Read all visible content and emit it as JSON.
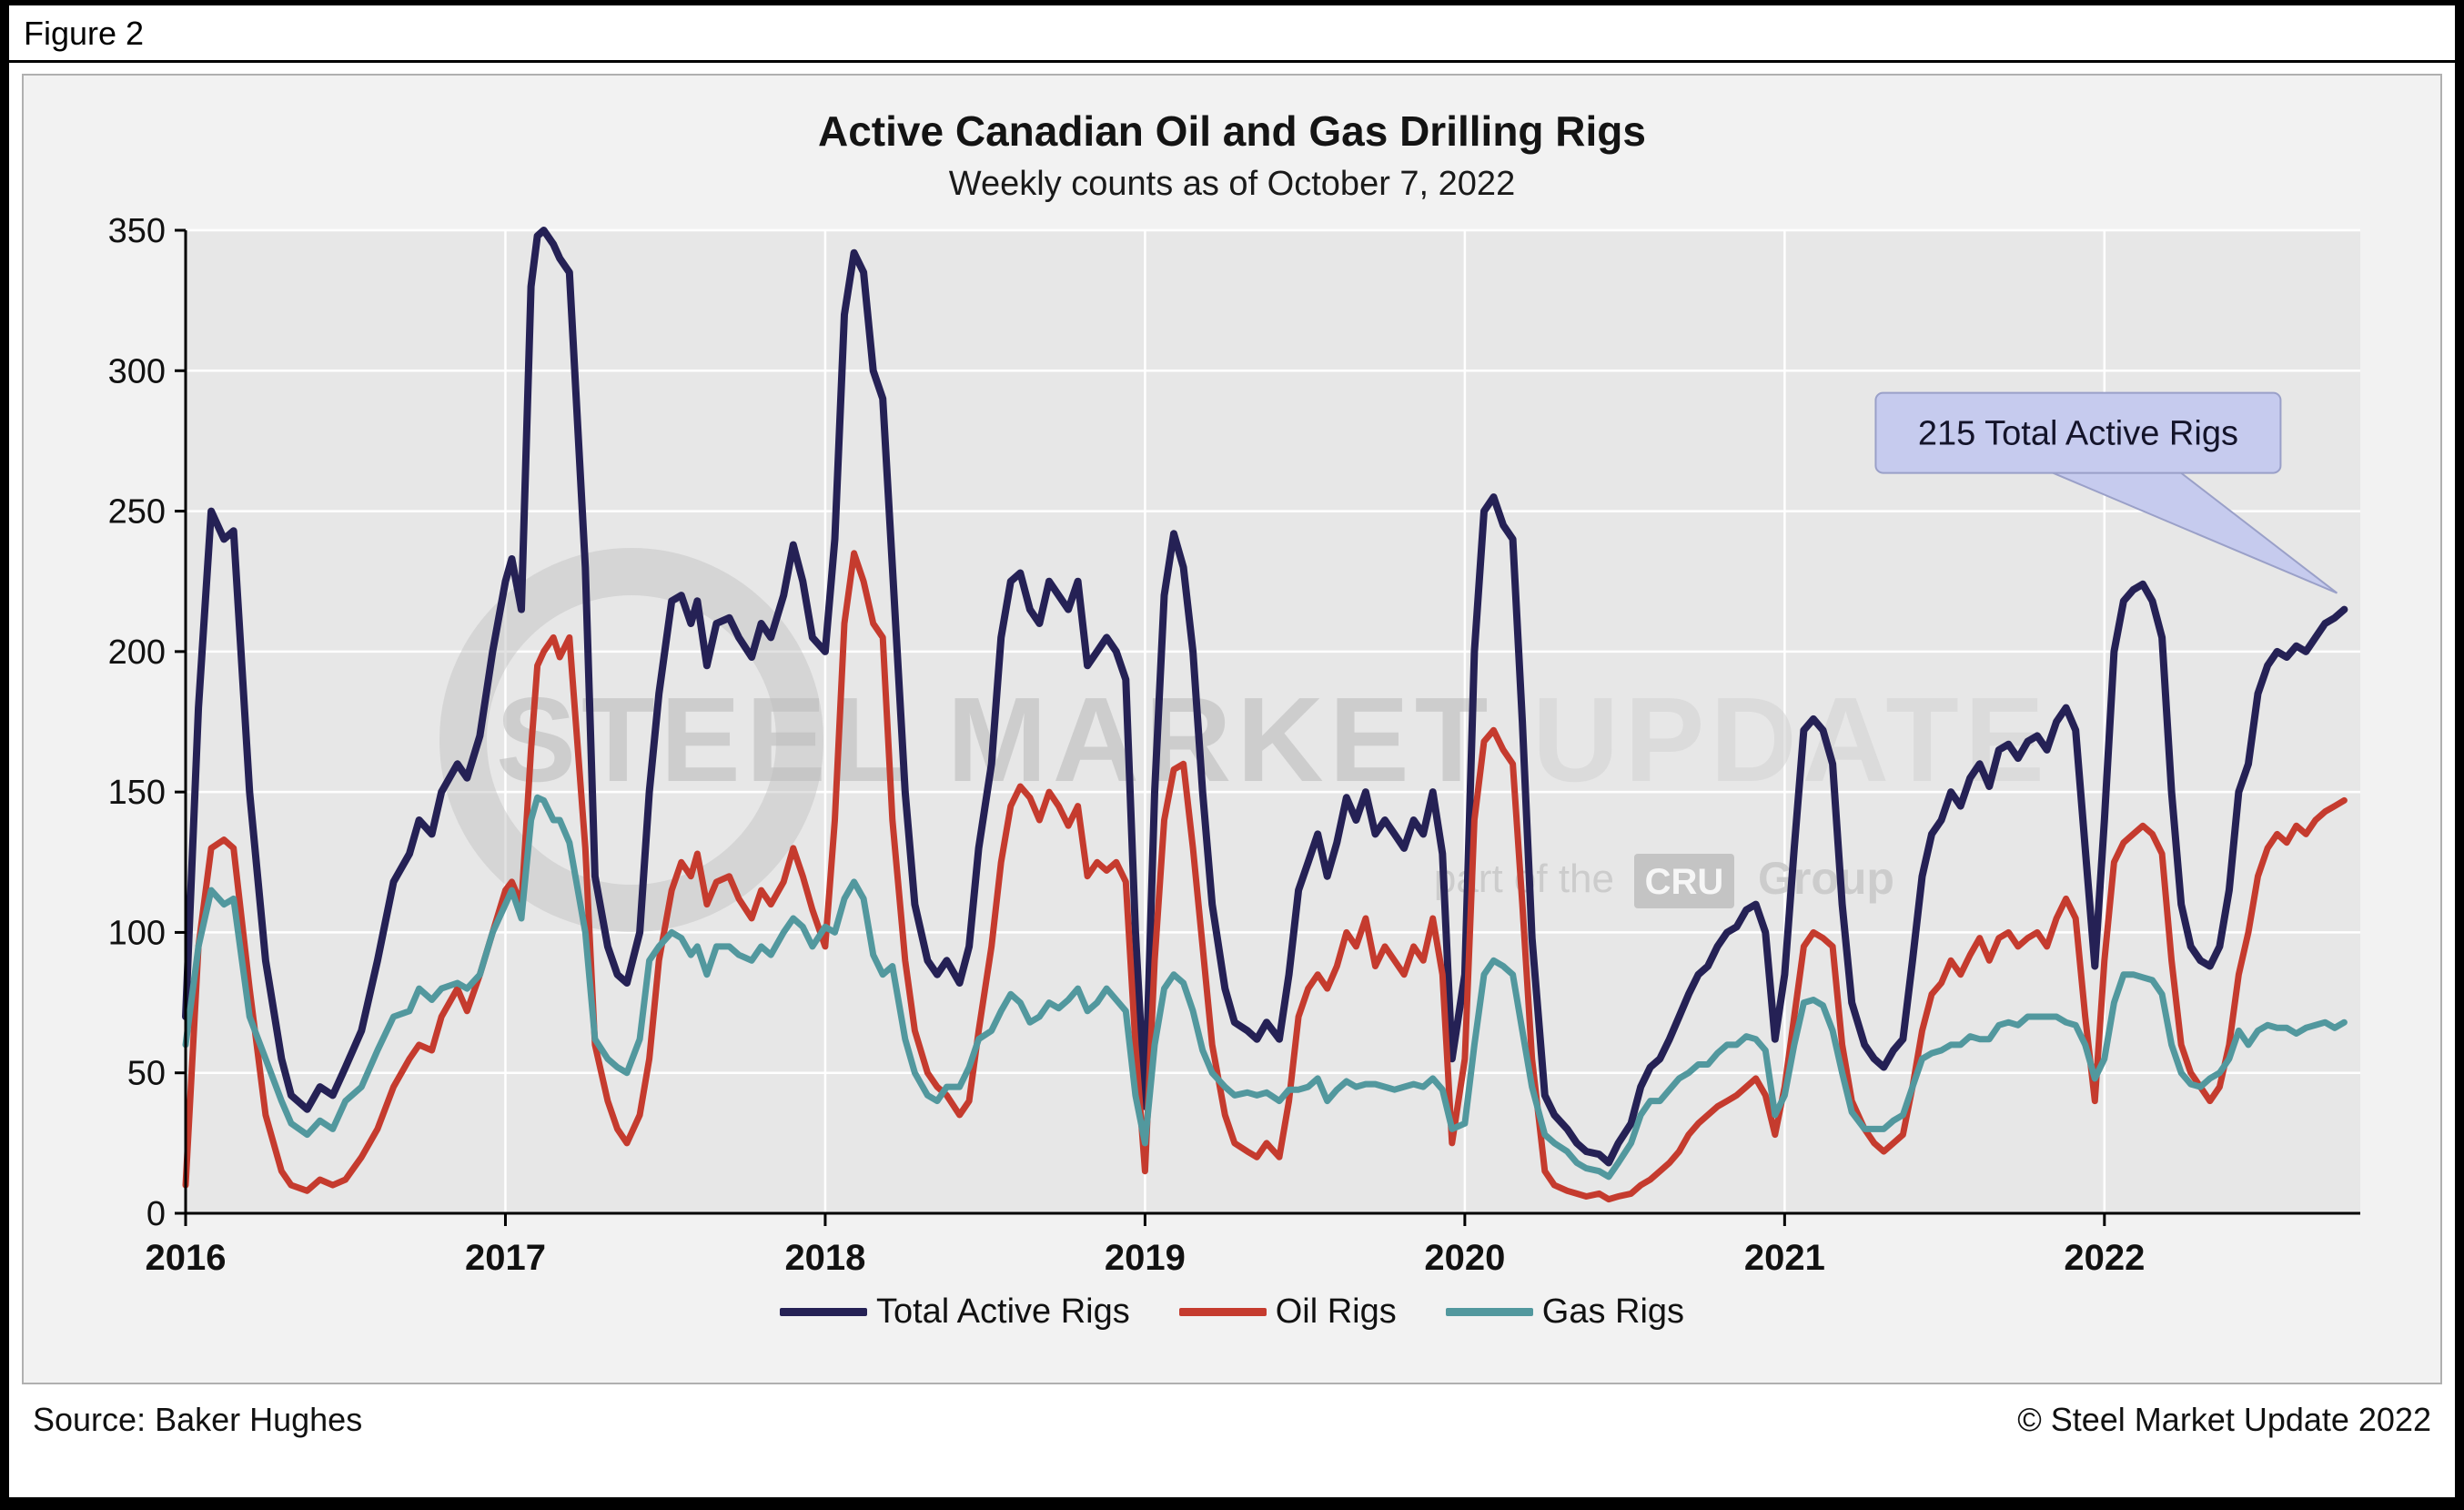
{
  "header": {
    "figure_label": "Figure 2"
  },
  "footer": {
    "source": "Source: Baker Hughes",
    "copyright": "© Steel Market Update 2022"
  },
  "watermark": {
    "line1_bold": "STEEL MARKET ",
    "line1_light": "UPDATE",
    "line2_prefix": "part of the",
    "line2_box": "CRU",
    "line2_suffix": "Group"
  },
  "chart_data": {
    "type": "line",
    "title": "Active Canadian Oil and Gas Drilling Rigs",
    "subtitle": "Weekly counts as of October 7, 2022",
    "xlabel": "",
    "ylabel": "",
    "xlim": [
      2016,
      2022.8
    ],
    "ylim": [
      0,
      350
    ],
    "x_ticks": [
      2016,
      2017,
      2018,
      2019,
      2020,
      2021,
      2022
    ],
    "y_ticks": [
      0,
      50,
      100,
      150,
      200,
      250,
      300,
      350
    ],
    "grid": true,
    "legend_position": "bottom",
    "plot_bg": "#e7e7e7",
    "grid_color": "#ffffff",
    "annotation": {
      "text": "215 Total Active Rigs",
      "x": 2022.75,
      "y": 215,
      "fill": "#c6cbee",
      "border": "#9aa0c8"
    },
    "x": [
      2016.0,
      2016.04,
      2016.08,
      2016.12,
      2016.15,
      2016.2,
      2016.25,
      2016.3,
      2016.33,
      2016.38,
      2016.42,
      2016.46,
      2016.5,
      2016.55,
      2016.6,
      2016.65,
      2016.7,
      2016.73,
      2016.77,
      2016.8,
      2016.85,
      2016.88,
      2016.92,
      2016.96,
      2017.0,
      2017.02,
      2017.05,
      2017.08,
      2017.1,
      2017.12,
      2017.15,
      2017.17,
      2017.2,
      2017.25,
      2017.28,
      2017.32,
      2017.35,
      2017.38,
      2017.42,
      2017.45,
      2017.48,
      2017.52,
      2017.55,
      2017.58,
      2017.6,
      2017.63,
      2017.66,
      2017.7,
      2017.73,
      2017.77,
      2017.8,
      2017.83,
      2017.87,
      2017.9,
      2017.93,
      2017.96,
      2018.0,
      2018.03,
      2018.06,
      2018.09,
      2018.12,
      2018.15,
      2018.18,
      2018.21,
      2018.25,
      2018.28,
      2018.32,
      2018.35,
      2018.38,
      2018.42,
      2018.45,
      2018.48,
      2018.52,
      2018.55,
      2018.58,
      2018.61,
      2018.64,
      2018.67,
      2018.7,
      2018.73,
      2018.76,
      2018.79,
      2018.82,
      2018.85,
      2018.88,
      2018.91,
      2018.94,
      2018.97,
      2019.0,
      2019.03,
      2019.06,
      2019.09,
      2019.12,
      2019.15,
      2019.18,
      2019.21,
      2019.25,
      2019.28,
      2019.32,
      2019.35,
      2019.38,
      2019.42,
      2019.45,
      2019.48,
      2019.51,
      2019.54,
      2019.57,
      2019.6,
      2019.63,
      2019.66,
      2019.69,
      2019.72,
      2019.75,
      2019.78,
      2019.81,
      2019.84,
      2019.87,
      2019.9,
      2019.93,
      2019.96,
      2020.0,
      2020.03,
      2020.06,
      2020.09,
      2020.12,
      2020.15,
      2020.18,
      2020.21,
      2020.25,
      2020.28,
      2020.32,
      2020.35,
      2020.38,
      2020.42,
      2020.45,
      2020.48,
      2020.52,
      2020.55,
      2020.58,
      2020.61,
      2020.64,
      2020.67,
      2020.7,
      2020.73,
      2020.76,
      2020.79,
      2020.82,
      2020.85,
      2020.88,
      2020.91,
      2020.94,
      2020.97,
      2021.0,
      2021.03,
      2021.06,
      2021.09,
      2021.12,
      2021.15,
      2021.18,
      2021.21,
      2021.25,
      2021.28,
      2021.31,
      2021.34,
      2021.37,
      2021.4,
      2021.43,
      2021.46,
      2021.49,
      2021.52,
      2021.55,
      2021.58,
      2021.61,
      2021.64,
      2021.67,
      2021.7,
      2021.73,
      2021.76,
      2021.79,
      2021.82,
      2021.85,
      2021.88,
      2021.91,
      2021.94,
      2021.97,
      2022.0,
      2022.03,
      2022.06,
      2022.09,
      2022.12,
      2022.15,
      2022.18,
      2022.21,
      2022.24,
      2022.27,
      2022.3,
      2022.33,
      2022.36,
      2022.39,
      2022.42,
      2022.45,
      2022.48,
      2022.51,
      2022.54,
      2022.57,
      2022.6,
      2022.63,
      2022.66,
      2022.69,
      2022.72,
      2022.75
    ],
    "series": [
      {
        "name": "Total Active Rigs",
        "color": "#252155",
        "values": [
          70,
          180,
          250,
          240,
          243,
          150,
          90,
          55,
          42,
          37,
          45,
          42,
          52,
          65,
          90,
          118,
          128,
          140,
          135,
          150,
          160,
          155,
          170,
          200,
          225,
          233,
          215,
          330,
          348,
          350,
          345,
          340,
          335,
          230,
          120,
          95,
          85,
          82,
          100,
          150,
          185,
          218,
          220,
          210,
          218,
          195,
          210,
          212,
          205,
          198,
          210,
          205,
          220,
          238,
          225,
          205,
          200,
          240,
          320,
          342,
          335,
          300,
          290,
          230,
          150,
          110,
          90,
          85,
          90,
          82,
          95,
          130,
          160,
          205,
          225,
          228,
          215,
          210,
          225,
          220,
          215,
          225,
          195,
          200,
          205,
          200,
          190,
          100,
          38,
          150,
          220,
          242,
          230,
          200,
          150,
          110,
          80,
          68,
          65,
          62,
          68,
          62,
          85,
          115,
          125,
          135,
          120,
          132,
          148,
          140,
          150,
          135,
          140,
          135,
          130,
          140,
          135,
          150,
          128,
          55,
          85,
          200,
          250,
          255,
          245,
          240,
          175,
          98,
          42,
          35,
          30,
          25,
          22,
          21,
          18,
          25,
          32,
          45,
          52,
          55,
          62,
          70,
          78,
          85,
          88,
          95,
          100,
          102,
          108,
          110,
          100,
          62,
          85,
          130,
          172,
          176,
          172,
          160,
          110,
          75,
          60,
          55,
          52,
          58,
          62,
          90,
          120,
          135,
          140,
          150,
          145,
          155,
          160,
          152,
          165,
          167,
          162,
          168,
          170,
          165,
          175,
          180,
          172,
          130,
          88,
          140,
          200,
          218,
          222,
          224,
          218,
          205,
          150,
          110,
          95,
          90,
          88,
          95,
          115,
          150,
          160,
          185,
          195,
          200,
          198,
          202,
          200,
          205,
          210,
          212,
          215
        ]
      },
      {
        "name": "Oil Rigs",
        "color": "#c53b2e",
        "values": [
          10,
          95,
          130,
          133,
          130,
          80,
          35,
          15,
          10,
          8,
          12,
          10,
          12,
          20,
          30,
          45,
          55,
          60,
          58,
          70,
          80,
          72,
          85,
          100,
          115,
          118,
          110,
          165,
          195,
          200,
          205,
          198,
          205,
          130,
          60,
          40,
          30,
          25,
          35,
          55,
          90,
          115,
          125,
          120,
          128,
          110,
          118,
          120,
          112,
          105,
          115,
          110,
          118,
          130,
          120,
          108,
          95,
          140,
          210,
          235,
          225,
          210,
          205,
          140,
          90,
          65,
          50,
          45,
          42,
          35,
          40,
          65,
          95,
          125,
          145,
          152,
          148,
          140,
          150,
          145,
          138,
          145,
          120,
          125,
          122,
          125,
          118,
          60,
          15,
          90,
          140,
          158,
          160,
          130,
          95,
          60,
          35,
          25,
          22,
          20,
          25,
          20,
          40,
          70,
          80,
          85,
          80,
          88,
          100,
          95,
          105,
          88,
          95,
          90,
          85,
          95,
          90,
          105,
          85,
          25,
          55,
          140,
          168,
          172,
          165,
          160,
          110,
          55,
          15,
          10,
          8,
          7,
          6,
          7,
          5,
          6,
          7,
          10,
          12,
          15,
          18,
          22,
          28,
          32,
          35,
          38,
          40,
          42,
          45,
          48,
          42,
          28,
          45,
          70,
          95,
          100,
          98,
          95,
          60,
          40,
          30,
          25,
          22,
          25,
          28,
          45,
          65,
          78,
          82,
          90,
          85,
          92,
          98,
          90,
          98,
          100,
          95,
          98,
          100,
          95,
          105,
          112,
          105,
          70,
          40,
          90,
          125,
          132,
          135,
          138,
          135,
          128,
          90,
          60,
          50,
          45,
          40,
          45,
          60,
          85,
          100,
          120,
          130,
          135,
          132,
          138,
          135,
          140,
          143,
          145,
          147
        ]
      },
      {
        "name": "Gas Rigs",
        "color": "#52989e",
        "values": [
          60,
          95,
          115,
          110,
          112,
          70,
          55,
          40,
          32,
          28,
          33,
          30,
          40,
          45,
          58,
          70,
          72,
          80,
          76,
          80,
          82,
          80,
          85,
          100,
          110,
          115,
          105,
          140,
          148,
          147,
          140,
          140,
          132,
          100,
          62,
          55,
          52,
          50,
          62,
          90,
          95,
          100,
          98,
          92,
          95,
          85,
          95,
          95,
          92,
          90,
          95,
          92,
          100,
          105,
          102,
          95,
          102,
          100,
          112,
          118,
          112,
          92,
          85,
          88,
          62,
          50,
          42,
          40,
          45,
          45,
          52,
          62,
          65,
          72,
          78,
          75,
          68,
          70,
          75,
          73,
          76,
          80,
          72,
          75,
          80,
          76,
          72,
          42,
          25,
          60,
          80,
          85,
          82,
          72,
          58,
          50,
          45,
          42,
          43,
          42,
          43,
          40,
          44,
          44,
          45,
          48,
          40,
          44,
          47,
          45,
          46,
          46,
          45,
          44,
          45,
          46,
          45,
          48,
          44,
          30,
          32,
          60,
          85,
          90,
          88,
          85,
          65,
          45,
          28,
          25,
          22,
          18,
          16,
          15,
          13,
          18,
          25,
          35,
          40,
          40,
          44,
          48,
          50,
          53,
          53,
          57,
          60,
          60,
          63,
          62,
          58,
          35,
          42,
          60,
          75,
          76,
          74,
          65,
          50,
          36,
          30,
          30,
          30,
          33,
          35,
          45,
          55,
          57,
          58,
          60,
          60,
          63,
          62,
          62,
          67,
          68,
          67,
          70,
          70,
          70,
          70,
          68,
          67,
          60,
          48,
          55,
          75,
          85,
          85,
          84,
          83,
          78,
          60,
          50,
          46,
          45,
          48,
          50,
          55,
          65,
          60,
          65,
          67,
          66,
          66,
          64,
          66,
          67,
          68,
          66,
          68
        ]
      }
    ]
  }
}
